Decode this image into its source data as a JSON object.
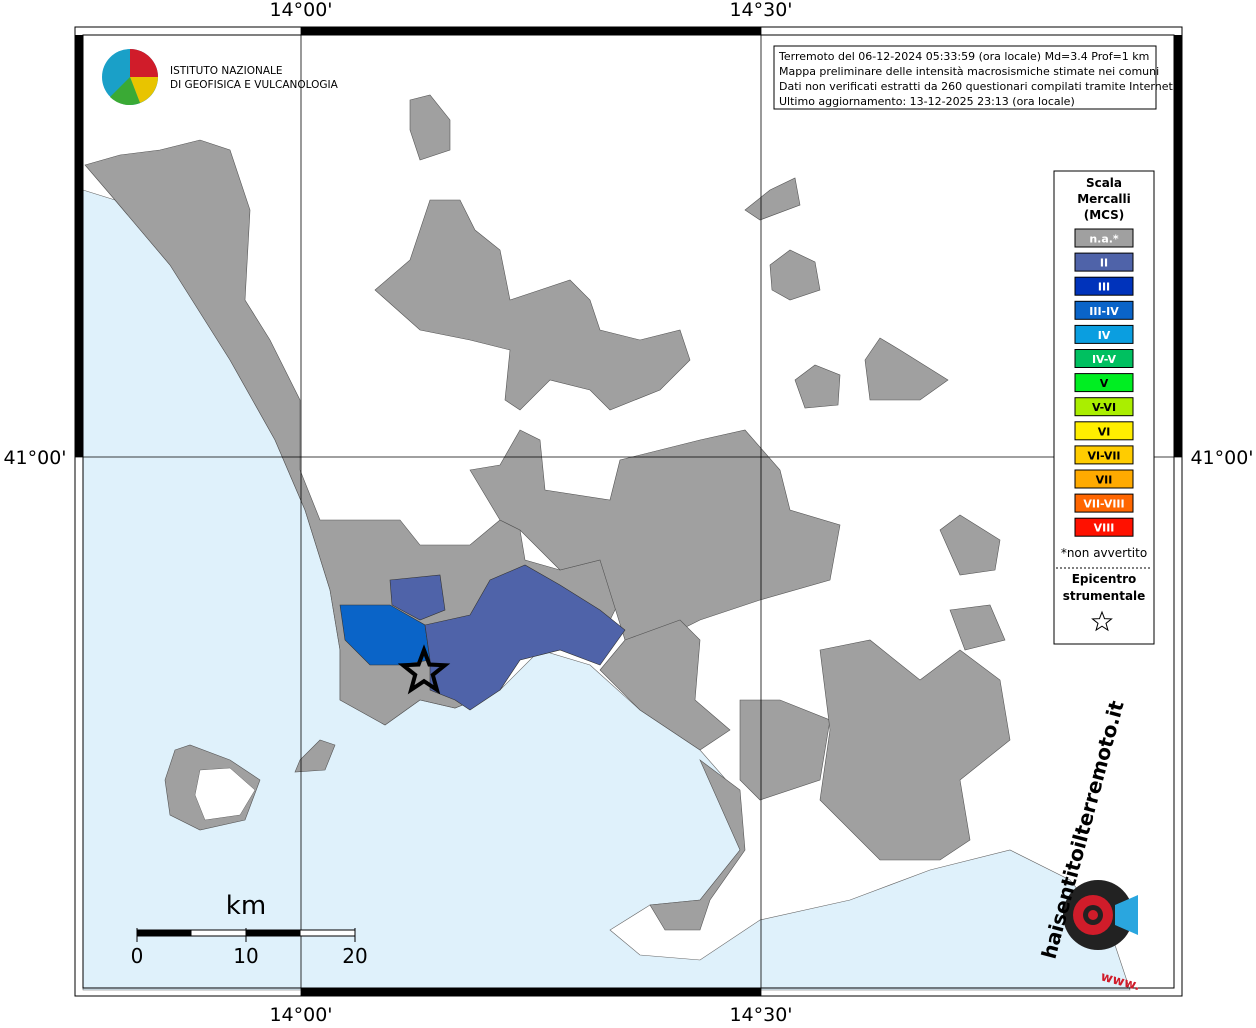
{
  "graticule": {
    "lon_labels": [
      "14°00'",
      "14°30'"
    ],
    "lat_labels": [
      "41°00'"
    ]
  },
  "logo": {
    "line1": "ISTITUTO NAZIONALE",
    "line2": "DI GEOFISICA E VULCANOLOGIA"
  },
  "info": [
    "Terremoto del 06-12-2024 05:33:59 (ora locale) Md=3.4 Prof=1 km",
    "Mappa preliminare delle intensità macrosismiche stimate nei comuni",
    "Dati non verificati estratti da 260 questionari compilati tramite Internet.",
    "Ultimo aggiornamento: 13-12-2025 23:13 (ora locale)"
  ],
  "legend": {
    "title": [
      "Scala",
      "Mercalli",
      "(MCS)"
    ],
    "items": [
      {
        "label": "n.a.*",
        "color": "#a0a0a0"
      },
      {
        "label": "II",
        "color": "#4f63a9"
      },
      {
        "label": "III",
        "color": "#0033bb"
      },
      {
        "label": "III-IV",
        "color": "#0a64c8"
      },
      {
        "label": "IV",
        "color": "#0a9ee0"
      },
      {
        "label": "IV-V",
        "color": "#00c060"
      },
      {
        "label": "V",
        "color": "#00ee22"
      },
      {
        "label": "V-VI",
        "color": "#aaee00"
      },
      {
        "label": "VI",
        "color": "#ffee00"
      },
      {
        "label": "VI-VII",
        "color": "#ffcc00"
      },
      {
        "label": "VII",
        "color": "#ffaa00"
      },
      {
        "label": "VII-VIII",
        "color": "#ff6600"
      },
      {
        "label": "VIII",
        "color": "#ff1100"
      }
    ],
    "note": "*non avvertito",
    "epicenter": [
      "Epicentro",
      "strumentale"
    ]
  },
  "scale_bar": {
    "unit": "km",
    "ticks": [
      0,
      10,
      20
    ]
  },
  "badge": {
    "text": "haisentitoilterremoto.it",
    "www": "www."
  }
}
